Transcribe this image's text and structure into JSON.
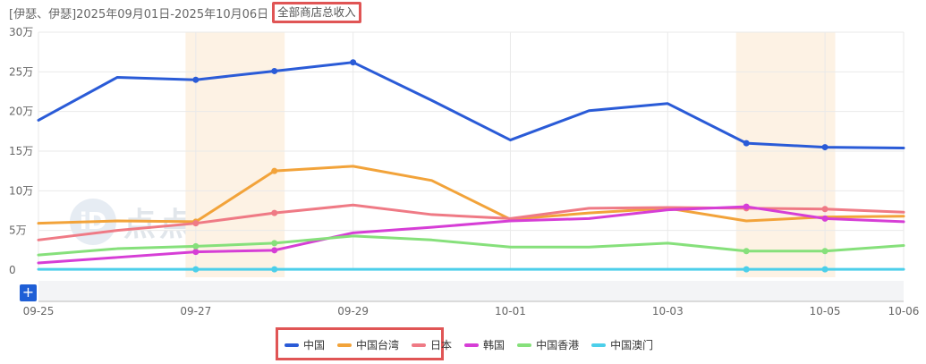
{
  "header": {
    "prefix": "[伊瑟、伊瑟]2025年09月01日-2025年10月06日",
    "store_filter": "全部商店总收入"
  },
  "watermark": {
    "logo": "iD",
    "text": "点点数据"
  },
  "colors": {
    "highlight_band": "#fdf2e4",
    "grid": "#e9e9e9",
    "accent_button": "#1f5fd6",
    "annotation_box": "#e05555"
  },
  "chart_data": {
    "type": "line",
    "title": "",
    "xlabel": "",
    "ylabel": "",
    "x": [
      "09-25",
      "09-26",
      "09-27",
      "09-28",
      "09-29",
      "09-30",
      "10-01",
      "10-02",
      "10-03",
      "10-04",
      "10-05",
      "10-06"
    ],
    "x_tick_labels": [
      "09-25",
      "09-27",
      "09-29",
      "10-01",
      "10-03",
      "10-05",
      "10-06"
    ],
    "y_tick_labels": [
      "0",
      "5万",
      "10万",
      "15万",
      "20万",
      "25万",
      "30万"
    ],
    "ylim": [
      0,
      300000
    ],
    "grid": true,
    "highlight_ranges": [
      [
        "09-27",
        "09-28"
      ],
      [
        "10-04",
        "10-05"
      ]
    ],
    "legend_position": "bottom-center",
    "series": [
      {
        "name": "中国",
        "color": "#2a5bd7",
        "values": [
          189000,
          243000,
          240000,
          251000,
          262000,
          214000,
          164000,
          201000,
          210000,
          160000,
          155000,
          154000
        ]
      },
      {
        "name": "中国台湾",
        "color": "#f2a33a",
        "values": [
          59000,
          62000,
          61000,
          125000,
          131000,
          113000,
          64000,
          72000,
          78000,
          62000,
          67000,
          68000
        ]
      },
      {
        "name": "日本",
        "color": "#ef7a85",
        "values": [
          38000,
          50000,
          59000,
          72000,
          82000,
          70000,
          65000,
          78000,
          79000,
          78000,
          77000,
          73000
        ]
      },
      {
        "name": "韩国",
        "color": "#d63ed6",
        "values": [
          9000,
          16000,
          23000,
          25000,
          47000,
          54000,
          62000,
          65000,
          76000,
          80000,
          65000,
          61000
        ]
      },
      {
        "name": "中国香港",
        "color": "#86e07b",
        "values": [
          19000,
          27000,
          30000,
          34000,
          43000,
          38000,
          29000,
          29000,
          34000,
          24000,
          24000,
          31000
        ]
      },
      {
        "name": "中国澳门",
        "color": "#4ccfea",
        "values": [
          1000,
          1000,
          1000,
          1000,
          1000,
          1000,
          1000,
          1000,
          1000,
          1000,
          1000,
          1000
        ]
      }
    ],
    "marked_points": {
      "中国": [
        2,
        3,
        4,
        9,
        10
      ],
      "中国台湾": [
        2,
        3
      ],
      "日本": [
        2,
        3,
        9,
        10
      ],
      "韩国": [
        2,
        3,
        9,
        10
      ],
      "中国香港": [
        2,
        3,
        9,
        10
      ],
      "中国澳门": [
        2,
        3,
        9,
        10
      ]
    }
  }
}
